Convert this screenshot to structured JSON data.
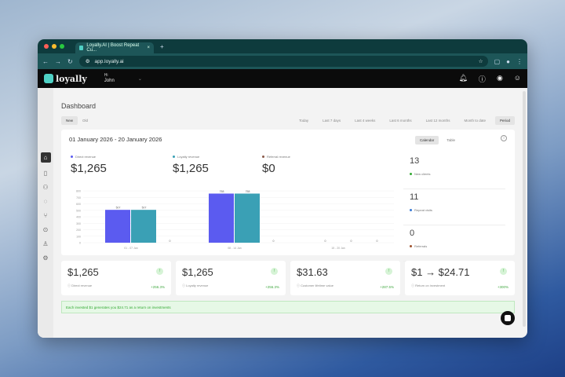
{
  "browser": {
    "tab_title": "Loyally.AI | Boost Repeat Cu...",
    "url": "app.loyally.ai"
  },
  "header": {
    "logo": "loyally",
    "greeting": "Hi",
    "user": "John"
  },
  "page": {
    "title": "Dashboard",
    "tabs": [
      "New",
      "Old"
    ],
    "ranges": [
      "Today",
      "Last 7 days",
      "Last 4 weeks",
      "Last 6 months",
      "Last 12 months",
      "Month to date",
      "Period"
    ],
    "date_range": "01 January 2026 - 20 January 2026",
    "view_toggle": [
      "Calendar",
      "Table"
    ]
  },
  "metrics": [
    {
      "label": "Direct revenue",
      "value": "$1,265",
      "color": "#5b5bf0"
    },
    {
      "label": "Loyalty revenue",
      "value": "$1,265",
      "color": "#3aa0b5"
    },
    {
      "label": "Referral revenue",
      "value": "$0",
      "color": "#8a5a4a"
    }
  ],
  "side_stats": [
    {
      "value": "13",
      "label": "New clients",
      "color": "#3a3"
    },
    {
      "value": "11",
      "label": "Repeat visits",
      "color": "#3a7bd5"
    },
    {
      "value": "0",
      "label": "Referrals",
      "color": "#a0522d"
    }
  ],
  "chart_data": {
    "type": "bar",
    "categories": [
      "01 - 07 Jan",
      "08 - 14 Jan",
      "15 - 20 Jan"
    ],
    "series": [
      {
        "values": [
          507,
          758,
          0
        ],
        "color": "#5b5bf0"
      },
      {
        "values": [
          507,
          758,
          0
        ],
        "color": "#3aa0b5"
      },
      {
        "values": [
          0,
          0,
          0
        ],
        "color": "#8a5a4a"
      }
    ],
    "yticks": [
      0,
      100,
      200,
      300,
      400,
      500,
      600,
      700,
      800
    ],
    "ylim": [
      0,
      800
    ],
    "grid": true
  },
  "cards": [
    {
      "value": "$1,265",
      "label": "Direct revenue",
      "change": "+256.3%"
    },
    {
      "value": "$1,265",
      "label": "Loyalty revenue",
      "change": "+256.3%"
    },
    {
      "value": "$31.63",
      "label": "Customer lifetime value",
      "change": "+287.5%"
    },
    {
      "value": "$1 → $24.71",
      "label": "Return on investment",
      "change": "+300%"
    }
  ],
  "banner": "Each invested $1 generates you $24.71 as a return on investments"
}
